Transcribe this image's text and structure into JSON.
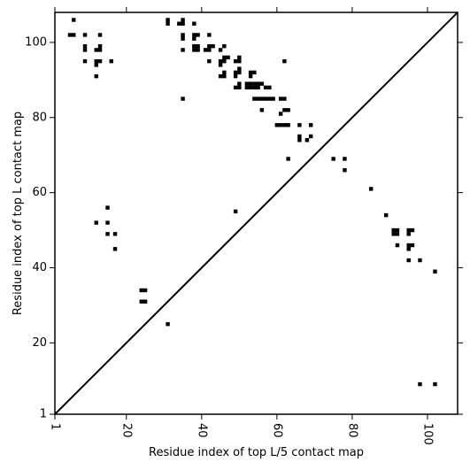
{
  "chart_data": {
    "type": "heatmap",
    "xlabel": "Residue index of top L/5 contact map",
    "ylabel": "Residue index of top L contact map",
    "xlim": [
      1,
      108
    ],
    "ylim": [
      1,
      108
    ],
    "x_ticks": [
      1,
      20,
      40,
      60,
      80,
      100
    ],
    "y_ticks": [
      1,
      20,
      40,
      60,
      80,
      100
    ],
    "x_tick_labels": [
      "1",
      "20",
      "40",
      "60",
      "80",
      "100"
    ],
    "y_tick_labels": [
      "1",
      "20",
      "40",
      "60",
      "80",
      "100"
    ],
    "x_tick_rotation": -90,
    "diagonal": true,
    "grid": false,
    "colors": {
      "contact": "#000000",
      "frame": "#000000",
      "background": "#ffffff"
    },
    "contacts_upper_top_L": [
      [
        6,
        106
      ],
      [
        5,
        102
      ],
      [
        6,
        102
      ],
      [
        9,
        102
      ],
      [
        13,
        102
      ],
      [
        9,
        99
      ],
      [
        13,
        99
      ],
      [
        9,
        98
      ],
      [
        12,
        98
      ],
      [
        13,
        98
      ],
      [
        9,
        95
      ],
      [
        12,
        95
      ],
      [
        13,
        95
      ],
      [
        16,
        95
      ],
      [
        12,
        94
      ],
      [
        12,
        91
      ],
      [
        31,
        106
      ],
      [
        31,
        105
      ],
      [
        34,
        105
      ],
      [
        35,
        106
      ],
      [
        35,
        105
      ],
      [
        35,
        102
      ],
      [
        35,
        101
      ],
      [
        35,
        98
      ],
      [
        38,
        105
      ],
      [
        38,
        102
      ],
      [
        39,
        102
      ],
      [
        38,
        101
      ],
      [
        38,
        99
      ],
      [
        39,
        99
      ],
      [
        38,
        98
      ],
      [
        39,
        98
      ],
      [
        41,
        98
      ],
      [
        42,
        98
      ],
      [
        42,
        99
      ],
      [
        43,
        99
      ],
      [
        42,
        102
      ],
      [
        42,
        95
      ],
      [
        45,
        98
      ],
      [
        46,
        99
      ],
      [
        45,
        95
      ],
      [
        46,
        96
      ],
      [
        47,
        96
      ],
      [
        45,
        94
      ],
      [
        46,
        95
      ],
      [
        45,
        91
      ],
      [
        46,
        91
      ],
      [
        46,
        92
      ],
      [
        49,
        95
      ],
      [
        50,
        95
      ],
      [
        50,
        96
      ],
      [
        49,
        92
      ],
      [
        50,
        92
      ],
      [
        50,
        93
      ],
      [
        49,
        91
      ],
      [
        49,
        88
      ],
      [
        50,
        88
      ],
      [
        50,
        89
      ],
      [
        52,
        89
      ],
      [
        53,
        89
      ],
      [
        54,
        89
      ],
      [
        55,
        89
      ],
      [
        52,
        88
      ],
      [
        53,
        88
      ],
      [
        54,
        88
      ],
      [
        55,
        88
      ],
      [
        53,
        92
      ],
      [
        54,
        92
      ],
      [
        53,
        91
      ],
      [
        54,
        85
      ],
      [
        55,
        85
      ],
      [
        56,
        85
      ],
      [
        57,
        85
      ],
      [
        58,
        85
      ],
      [
        59,
        85
      ],
      [
        56,
        89
      ],
      [
        57,
        88
      ],
      [
        58,
        88
      ],
      [
        56,
        82
      ],
      [
        61,
        85
      ],
      [
        62,
        85
      ],
      [
        61,
        81
      ],
      [
        62,
        82
      ],
      [
        63,
        82
      ],
      [
        60,
        78
      ],
      [
        61,
        78
      ],
      [
        62,
        78
      ],
      [
        63,
        78
      ],
      [
        66,
        78
      ],
      [
        69,
        78
      ],
      [
        62,
        95
      ],
      [
        66,
        75
      ],
      [
        66,
        74
      ],
      [
        68,
        74
      ],
      [
        69,
        75
      ],
      [
        63,
        69
      ],
      [
        75,
        69
      ],
      [
        78,
        69
      ],
      [
        78,
        66
      ],
      [
        85,
        61
      ],
      [
        89,
        54
      ],
      [
        91,
        50
      ],
      [
        92,
        50
      ],
      [
        92,
        49
      ],
      [
        91,
        49
      ],
      [
        95,
        50
      ],
      [
        96,
        50
      ],
      [
        95,
        49
      ],
      [
        92,
        46
      ],
      [
        95,
        46
      ],
      [
        96,
        46
      ],
      [
        95,
        45
      ],
      [
        95,
        42
      ],
      [
        98,
        42
      ],
      [
        102,
        39
      ],
      [
        35,
        85
      ],
      [
        49,
        55
      ],
      [
        12,
        52
      ],
      [
        15,
        56
      ],
      [
        15,
        52
      ],
      [
        15,
        49
      ],
      [
        17,
        49
      ],
      [
        17,
        45
      ],
      [
        24,
        34
      ],
      [
        25,
        34
      ],
      [
        24,
        31
      ],
      [
        25,
        31
      ],
      [
        31,
        25
      ],
      [
        98,
        9
      ],
      [
        102,
        9
      ]
    ]
  }
}
